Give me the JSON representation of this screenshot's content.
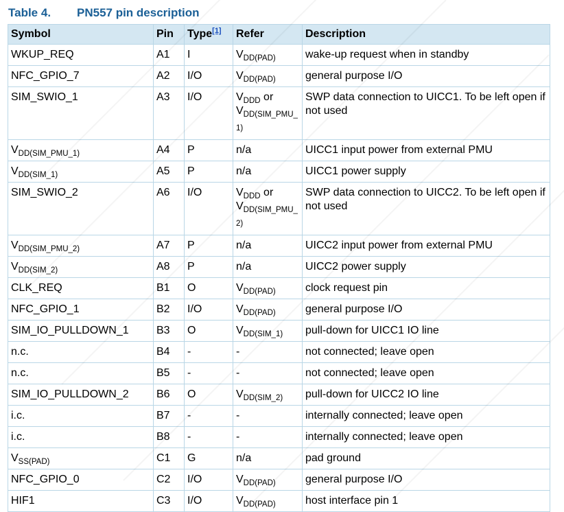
{
  "caption": {
    "number": "Table 4.",
    "title": "PN557 pin description"
  },
  "headers": {
    "symbol": "Symbol",
    "pin": "Pin",
    "type": "Type",
    "type_footnote": "[1]",
    "refer": "Refer",
    "description": "Description"
  },
  "rows": [
    {
      "symbol": "WKUP_REQ",
      "pin": "A1",
      "type": "I",
      "refer_main": "V",
      "refer_sub": "DD(PAD)",
      "refer_suffix": "",
      "refer_line2_main": "",
      "refer_line2_sub": "",
      "description": "wake-up request when in standby"
    },
    {
      "symbol": "NFC_GPIO_7",
      "pin": "A2",
      "type": "I/O",
      "refer_main": "V",
      "refer_sub": "DD(PAD)",
      "refer_suffix": "",
      "refer_line2_main": "",
      "refer_line2_sub": "",
      "description": "general purpose I/O"
    },
    {
      "symbol": "SIM_SWIO_1",
      "pin": "A3",
      "type": "I/O",
      "refer_main": "V",
      "refer_sub": "DDD",
      "refer_suffix": " or",
      "refer_line2_main": "V",
      "refer_line2_sub": "DD(SIM_PMU_1)",
      "description": "SWP data connection to UICC1. To be left open if not used"
    },
    {
      "symbol_main": "V",
      "symbol_sub": "DD(SIM_PMU_1)",
      "pin": "A4",
      "type": "P",
      "refer": "n/a",
      "description": "UICC1 input power from external PMU"
    },
    {
      "symbol_main": "V",
      "symbol_sub": "DD(SIM_1)",
      "pin": "A5",
      "type": "P",
      "refer": "n/a",
      "description": "UICC1 power supply"
    },
    {
      "symbol": "SIM_SWIO_2",
      "pin": "A6",
      "type": "I/O",
      "refer_main": "V",
      "refer_sub": "DDD",
      "refer_suffix": " or",
      "refer_line2_main": "V",
      "refer_line2_sub": "DD(SIM_PMU_2)",
      "description": "SWP data connection to UICC2. To be left open if not used"
    },
    {
      "symbol_main": "V",
      "symbol_sub": "DD(SIM_PMU_2)",
      "pin": "A7",
      "type": "P",
      "refer": "n/a",
      "description": "UICC2 input power from external PMU"
    },
    {
      "symbol_main": "V",
      "symbol_sub": "DD(SIM_2)",
      "pin": "A8",
      "type": "P",
      "refer": "n/a",
      "description": "UICC2 power supply"
    },
    {
      "symbol": "CLK_REQ",
      "pin": "B1",
      "type": "O",
      "refer_main": "V",
      "refer_sub": "DD(PAD)",
      "description": "clock request pin"
    },
    {
      "symbol": "NFC_GPIO_1",
      "pin": "B2",
      "type": "I/O",
      "refer_main": "V",
      "refer_sub": "DD(PAD)",
      "description": "general purpose I/O"
    },
    {
      "symbol": "SIM_IO_PULLDOWN_1",
      "pin": "B3",
      "type": "O",
      "refer_main": "V",
      "refer_sub": "DD(SIM_1)",
      "description": "pull-down for UICC1 IO line"
    },
    {
      "symbol": "n.c.",
      "pin": "B4",
      "type": "-",
      "refer": "-",
      "description": "not connected; leave open"
    },
    {
      "symbol": "n.c.",
      "pin": "B5",
      "type": "-",
      "refer": "-",
      "description": "not connected; leave open"
    },
    {
      "symbol": "SIM_IO_PULLDOWN_2",
      "pin": "B6",
      "type": "O",
      "refer_main": "V",
      "refer_sub": "DD(SIM_2)",
      "description": "pull-down for UICC2 IO line"
    },
    {
      "symbol": "i.c.",
      "pin": "B7",
      "type": "-",
      "refer": "-",
      "description": "internally connected; leave open"
    },
    {
      "symbol": "i.c.",
      "pin": "B8",
      "type": "-",
      "refer": "-",
      "description": "internally connected; leave open"
    },
    {
      "symbol_main": "V",
      "symbol_sub": "SS(PAD)",
      "pin": "C1",
      "type": "G",
      "refer": "n/a",
      "description": "pad ground"
    },
    {
      "symbol": "NFC_GPIO_0",
      "pin": "C2",
      "type": "I/O",
      "refer_main": "V",
      "refer_sub": "DD(PAD)",
      "description": "general purpose I/O"
    },
    {
      "symbol": "HIF1",
      "pin": "C3",
      "type": "I/O",
      "refer_main": "V",
      "refer_sub": "DD(PAD)",
      "description": "host interface pin 1"
    }
  ]
}
